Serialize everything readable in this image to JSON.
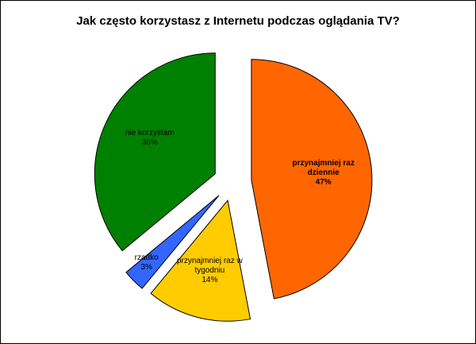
{
  "chart_data": {
    "type": "pie",
    "title": "Jak często korzystasz z Internetu podczas oglądania TV?",
    "categories": [
      "przynajmniej raz dziennie",
      "przynajmniej raz w tygodniu",
      "rzadko",
      "nie korzystam"
    ],
    "values": [
      47,
      14,
      3,
      36
    ],
    "value_labels": [
      "47%",
      "14%",
      "3%",
      "36%"
    ],
    "colors": [
      "#ff6600",
      "#ffcc00",
      "#3366ff",
      "#008000"
    ],
    "bold_labels": [
      true,
      false,
      false,
      false
    ]
  }
}
